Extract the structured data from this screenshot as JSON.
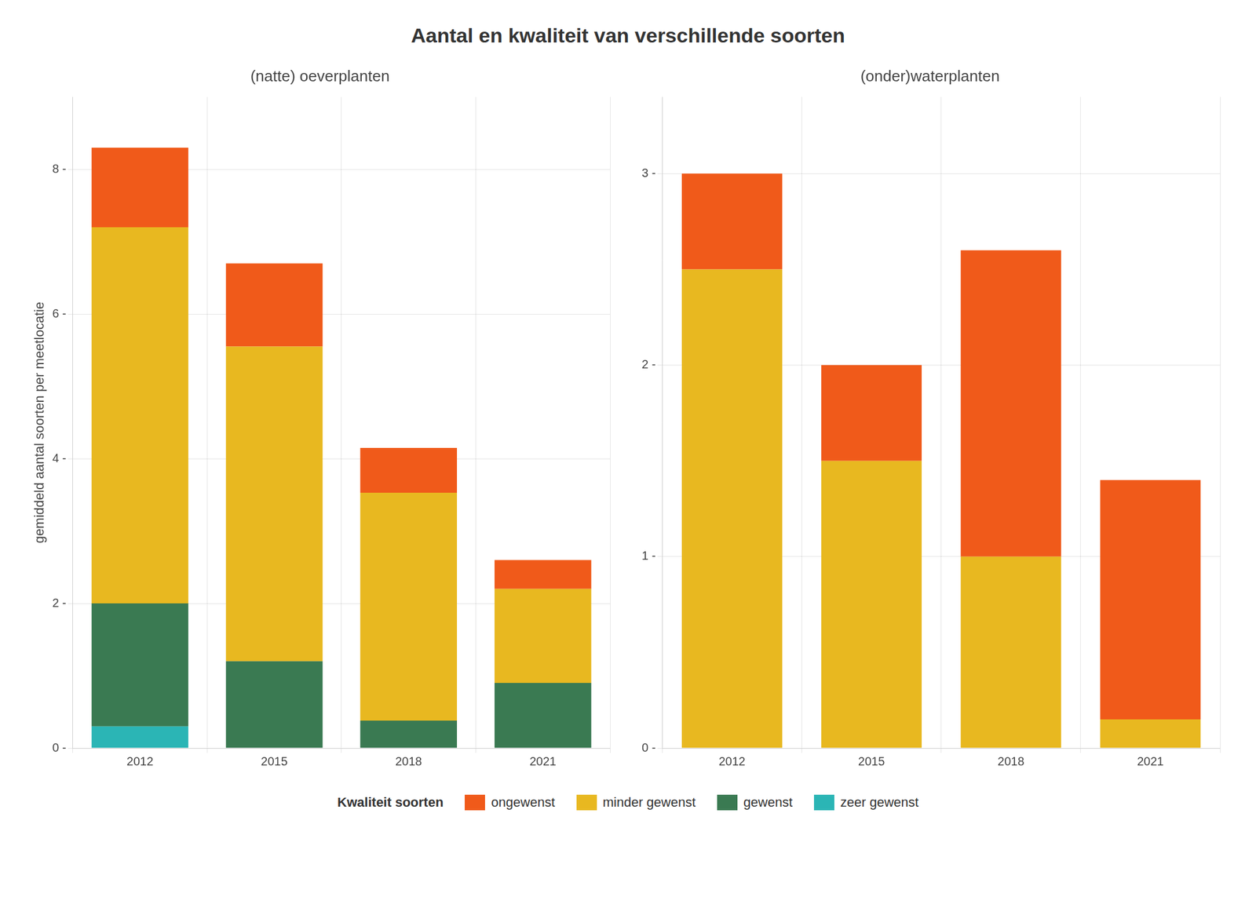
{
  "title": "Aantal en kwaliteit van verschillende soorten",
  "legend": "bottom",
  "legend_title": "Kwaliteit soorten",
  "chart_data": [
    {
      "type": "bar",
      "subtitle": "(natte) oeverplanten",
      "ylabel": "gemiddeld aantal soorten per meetlocatie",
      "categories": [
        2012,
        2015,
        2018,
        2021
      ],
      "series": [
        {
          "name": "zeer gewenst",
          "color": "#2BB5B5",
          "values": [
            0.3,
            0.0,
            0.0,
            0.0
          ]
        },
        {
          "name": "gewenst",
          "color": "#3A7A52",
          "values": [
            1.7,
            1.2,
            0.38,
            0.9
          ]
        },
        {
          "name": "minder gewenst",
          "color": "#E8B820",
          "values": [
            5.2,
            4.35,
            3.15,
            1.3
          ]
        },
        {
          "name": "ongewenst",
          "color": "#F05A1A",
          "values": [
            1.1,
            1.15,
            0.62,
            0.4
          ]
        }
      ],
      "stacked": true,
      "ylim": [
        0,
        9.0
      ],
      "yticks": [
        {
          "value": 0,
          "label": "0 -"
        },
        {
          "value": 2,
          "label": "2 -"
        },
        {
          "value": 4,
          "label": "4 -"
        },
        {
          "value": 6,
          "label": "6 -"
        },
        {
          "value": 8,
          "label": "8 -"
        }
      ],
      "grid": true
    },
    {
      "type": "bar",
      "subtitle": "(onder)waterplanten",
      "categories": [
        2012,
        2015,
        2018,
        2021
      ],
      "series": [
        {
          "name": "zeer gewenst",
          "color": "#2BB5B5",
          "values": [
            0.0,
            0.0,
            0.0,
            0.0
          ]
        },
        {
          "name": "gewenst",
          "color": "#3A7A52",
          "values": [
            0.0,
            0.0,
            0.0,
            0.0
          ]
        },
        {
          "name": "minder gewenst",
          "color": "#E8B820",
          "values": [
            2.5,
            1.5,
            1.0,
            0.15
          ]
        },
        {
          "name": "ongewenst",
          "color": "#F05A1A",
          "values": [
            0.5,
            0.5,
            1.6,
            1.25
          ]
        }
      ],
      "stacked": true,
      "ylim": [
        0,
        3.4
      ],
      "yticks": [
        {
          "value": 0,
          "label": "0 -"
        },
        {
          "value": 1,
          "label": "1 -"
        },
        {
          "value": 2,
          "label": "2 -"
        },
        {
          "value": 3,
          "label": "3 -"
        }
      ],
      "grid": true
    }
  ]
}
